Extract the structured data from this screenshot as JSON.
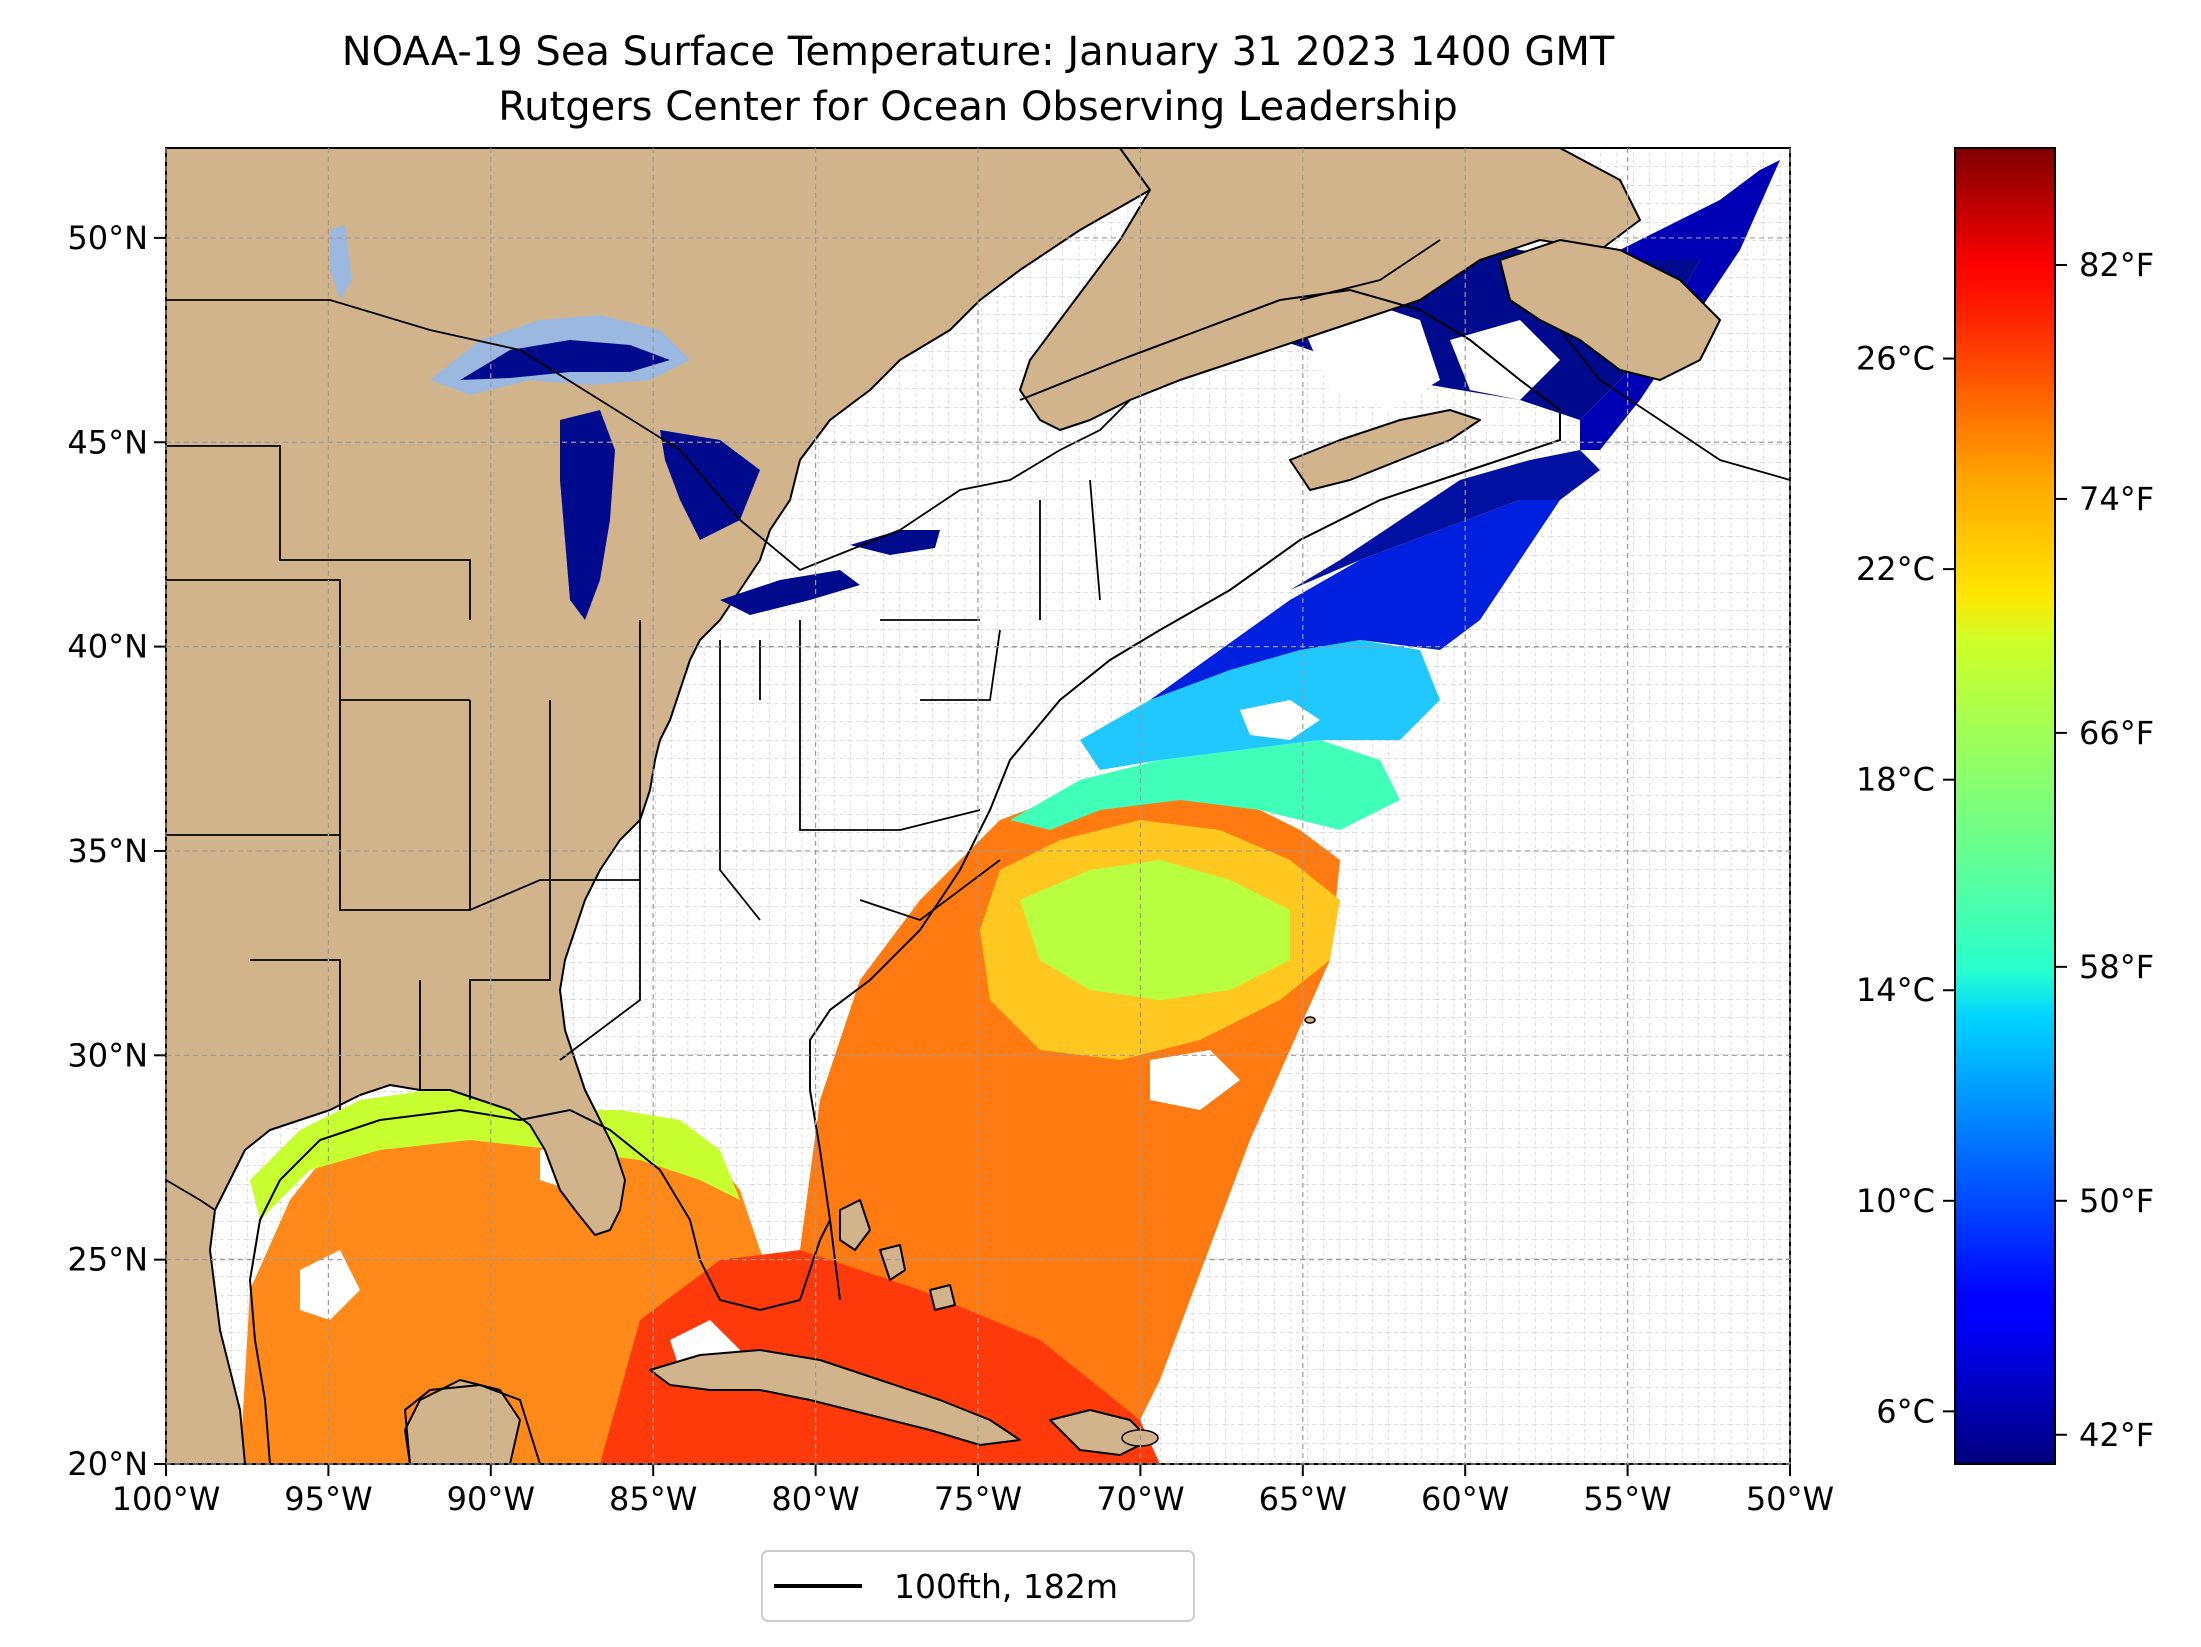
{
  "title": {
    "line1": "NOAA-19 Sea Surface Temperature: January 31 2023 1400 GMT",
    "line2": "Rutgers Center for Ocean Observing Leadership"
  },
  "map": {
    "lon_range": [
      -100,
      -50
    ],
    "lat_range": [
      20,
      52.2
    ],
    "lon_ticks": [
      {
        "value": -100,
        "label": "100°W"
      },
      {
        "value": -95,
        "label": "95°W"
      },
      {
        "value": -90,
        "label": "90°W"
      },
      {
        "value": -85,
        "label": "85°W"
      },
      {
        "value": -80,
        "label": "80°W"
      },
      {
        "value": -75,
        "label": "75°W"
      },
      {
        "value": -70,
        "label": "70°W"
      },
      {
        "value": -65,
        "label": "65°W"
      },
      {
        "value": -60,
        "label": "60°W"
      },
      {
        "value": -55,
        "label": "55°W"
      },
      {
        "value": -50,
        "label": "50°W"
      }
    ],
    "lat_ticks": [
      {
        "value": 20,
        "label": "20°N"
      },
      {
        "value": 25,
        "label": "25°N"
      },
      {
        "value": 30,
        "label": "30°N"
      },
      {
        "value": 35,
        "label": "35°N"
      },
      {
        "value": 40,
        "label": "40°N"
      },
      {
        "value": 45,
        "label": "45°N"
      },
      {
        "value": 50,
        "label": "50°N"
      }
    ],
    "gridlines": true,
    "land_color": "#d2b48c",
    "lake_color": "#9bb8e0",
    "no_data_color": "#ffffff",
    "border_color": "#000000"
  },
  "colorbar": {
    "colormap": "jet",
    "range_c": [
      5,
      30
    ],
    "celsius_ticks": [
      {
        "value": 6,
        "label": "6°C"
      },
      {
        "value": 10,
        "label": "10°C"
      },
      {
        "value": 14,
        "label": "14°C"
      },
      {
        "value": 18,
        "label": "18°C"
      },
      {
        "value": 22,
        "label": "22°C"
      },
      {
        "value": 26,
        "label": "26°C"
      }
    ],
    "fahrenheit_ticks": [
      {
        "value": 42,
        "label": "42°F"
      },
      {
        "value": 50,
        "label": "50°F"
      },
      {
        "value": 58,
        "label": "58°F"
      },
      {
        "value": 66,
        "label": "66°F"
      },
      {
        "value": 74,
        "label": "74°F"
      },
      {
        "value": 82,
        "label": "82°F"
      }
    ]
  },
  "legend": {
    "label": "100fth, 182m",
    "line_color": "#000000"
  }
}
